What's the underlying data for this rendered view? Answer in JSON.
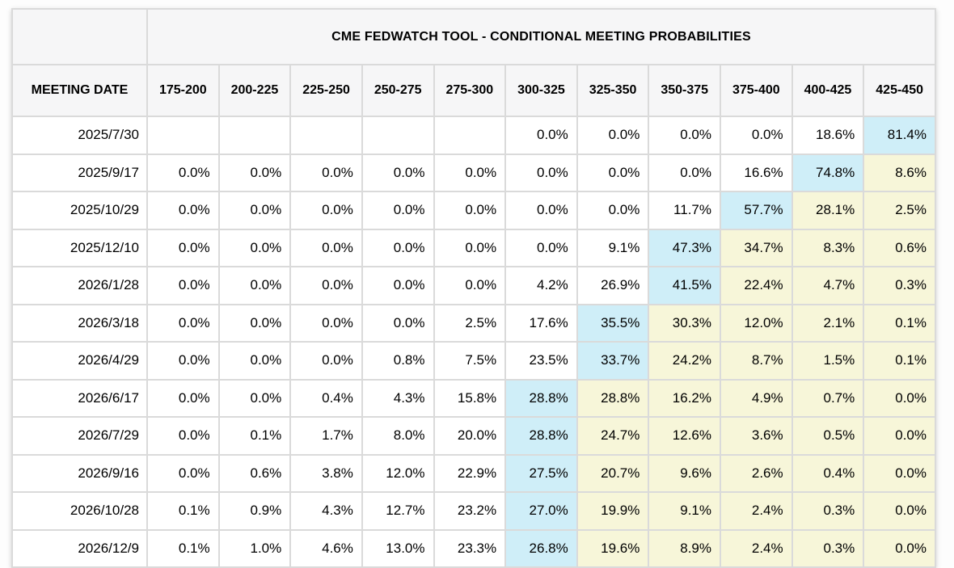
{
  "table": {
    "title": "CME FEDWATCH TOOL - CONDITIONAL MEETING PROBABILITIES",
    "row_header": "MEETING DATE",
    "columns": [
      "175-200",
      "200-225",
      "225-250",
      "250-275",
      "275-300",
      "300-325",
      "325-350",
      "350-375",
      "375-400",
      "400-425",
      "425-450"
    ],
    "rows": [
      {
        "date": "2025/7/30",
        "values": [
          "",
          "",
          "",
          "",
          "",
          "0.0%",
          "0.0%",
          "0.0%",
          "0.0%",
          "18.6%",
          "81.4%"
        ],
        "highlights": [
          "",
          "",
          "",
          "",
          "",
          "",
          "",
          "",
          "",
          "",
          "blue"
        ]
      },
      {
        "date": "2025/9/17",
        "values": [
          "0.0%",
          "0.0%",
          "0.0%",
          "0.0%",
          "0.0%",
          "0.0%",
          "0.0%",
          "0.0%",
          "16.6%",
          "74.8%",
          "8.6%"
        ],
        "highlights": [
          "",
          "",
          "",
          "",
          "",
          "",
          "",
          "",
          "",
          "blue",
          "yellow"
        ]
      },
      {
        "date": "2025/10/29",
        "values": [
          "0.0%",
          "0.0%",
          "0.0%",
          "0.0%",
          "0.0%",
          "0.0%",
          "0.0%",
          "11.7%",
          "57.7%",
          "28.1%",
          "2.5%"
        ],
        "highlights": [
          "",
          "",
          "",
          "",
          "",
          "",
          "",
          "",
          "blue",
          "yellow",
          "yellow"
        ]
      },
      {
        "date": "2025/12/10",
        "values": [
          "0.0%",
          "0.0%",
          "0.0%",
          "0.0%",
          "0.0%",
          "0.0%",
          "9.1%",
          "47.3%",
          "34.7%",
          "8.3%",
          "0.6%"
        ],
        "highlights": [
          "",
          "",
          "",
          "",
          "",
          "",
          "",
          "blue",
          "yellow",
          "yellow",
          "yellow"
        ]
      },
      {
        "date": "2026/1/28",
        "values": [
          "0.0%",
          "0.0%",
          "0.0%",
          "0.0%",
          "0.0%",
          "4.2%",
          "26.9%",
          "41.5%",
          "22.4%",
          "4.7%",
          "0.3%"
        ],
        "highlights": [
          "",
          "",
          "",
          "",
          "",
          "",
          "",
          "blue",
          "yellow",
          "yellow",
          "yellow"
        ]
      },
      {
        "date": "2026/3/18",
        "values": [
          "0.0%",
          "0.0%",
          "0.0%",
          "0.0%",
          "2.5%",
          "17.6%",
          "35.5%",
          "30.3%",
          "12.0%",
          "2.1%",
          "0.1%"
        ],
        "highlights": [
          "",
          "",
          "",
          "",
          "",
          "",
          "blue",
          "yellow",
          "yellow",
          "yellow",
          "yellow"
        ]
      },
      {
        "date": "2026/4/29",
        "values": [
          "0.0%",
          "0.0%",
          "0.0%",
          "0.8%",
          "7.5%",
          "23.5%",
          "33.7%",
          "24.2%",
          "8.7%",
          "1.5%",
          "0.1%"
        ],
        "highlights": [
          "",
          "",
          "",
          "",
          "",
          "",
          "blue",
          "yellow",
          "yellow",
          "yellow",
          "yellow"
        ]
      },
      {
        "date": "2026/6/17",
        "values": [
          "0.0%",
          "0.0%",
          "0.4%",
          "4.3%",
          "15.8%",
          "28.8%",
          "28.8%",
          "16.2%",
          "4.9%",
          "0.7%",
          "0.0%"
        ],
        "highlights": [
          "",
          "",
          "",
          "",
          "",
          "blue",
          "yellow",
          "yellow",
          "yellow",
          "yellow",
          "yellow"
        ]
      },
      {
        "date": "2026/7/29",
        "values": [
          "0.0%",
          "0.1%",
          "1.7%",
          "8.0%",
          "20.0%",
          "28.8%",
          "24.7%",
          "12.6%",
          "3.6%",
          "0.5%",
          "0.0%"
        ],
        "highlights": [
          "",
          "",
          "",
          "",
          "",
          "blue",
          "yellow",
          "yellow",
          "yellow",
          "yellow",
          "yellow"
        ]
      },
      {
        "date": "2026/9/16",
        "values": [
          "0.0%",
          "0.6%",
          "3.8%",
          "12.0%",
          "22.9%",
          "27.5%",
          "20.7%",
          "9.6%",
          "2.6%",
          "0.4%",
          "0.0%"
        ],
        "highlights": [
          "",
          "",
          "",
          "",
          "",
          "blue",
          "yellow",
          "yellow",
          "yellow",
          "yellow",
          "yellow"
        ]
      },
      {
        "date": "2026/10/28",
        "values": [
          "0.1%",
          "0.9%",
          "4.3%",
          "12.7%",
          "23.2%",
          "27.0%",
          "19.9%",
          "9.1%",
          "2.4%",
          "0.3%",
          "0.0%"
        ],
        "highlights": [
          "",
          "",
          "",
          "",
          "",
          "blue",
          "yellow",
          "yellow",
          "yellow",
          "yellow",
          "yellow"
        ]
      },
      {
        "date": "2026/12/9",
        "values": [
          "0.1%",
          "1.0%",
          "4.6%",
          "13.0%",
          "23.3%",
          "26.8%",
          "19.6%",
          "8.9%",
          "2.4%",
          "0.3%",
          "0.0%"
        ],
        "highlights": [
          "",
          "",
          "",
          "",
          "",
          "blue",
          "yellow",
          "yellow",
          "yellow",
          "yellow",
          "yellow"
        ]
      }
    ],
    "colors": {
      "highlight_blue": "#cfeef8",
      "highlight_yellow": "#f7f6d9",
      "header_bg": "#f6f6f7",
      "border": "#dadada",
      "cell_bg": "#ffffff"
    }
  }
}
